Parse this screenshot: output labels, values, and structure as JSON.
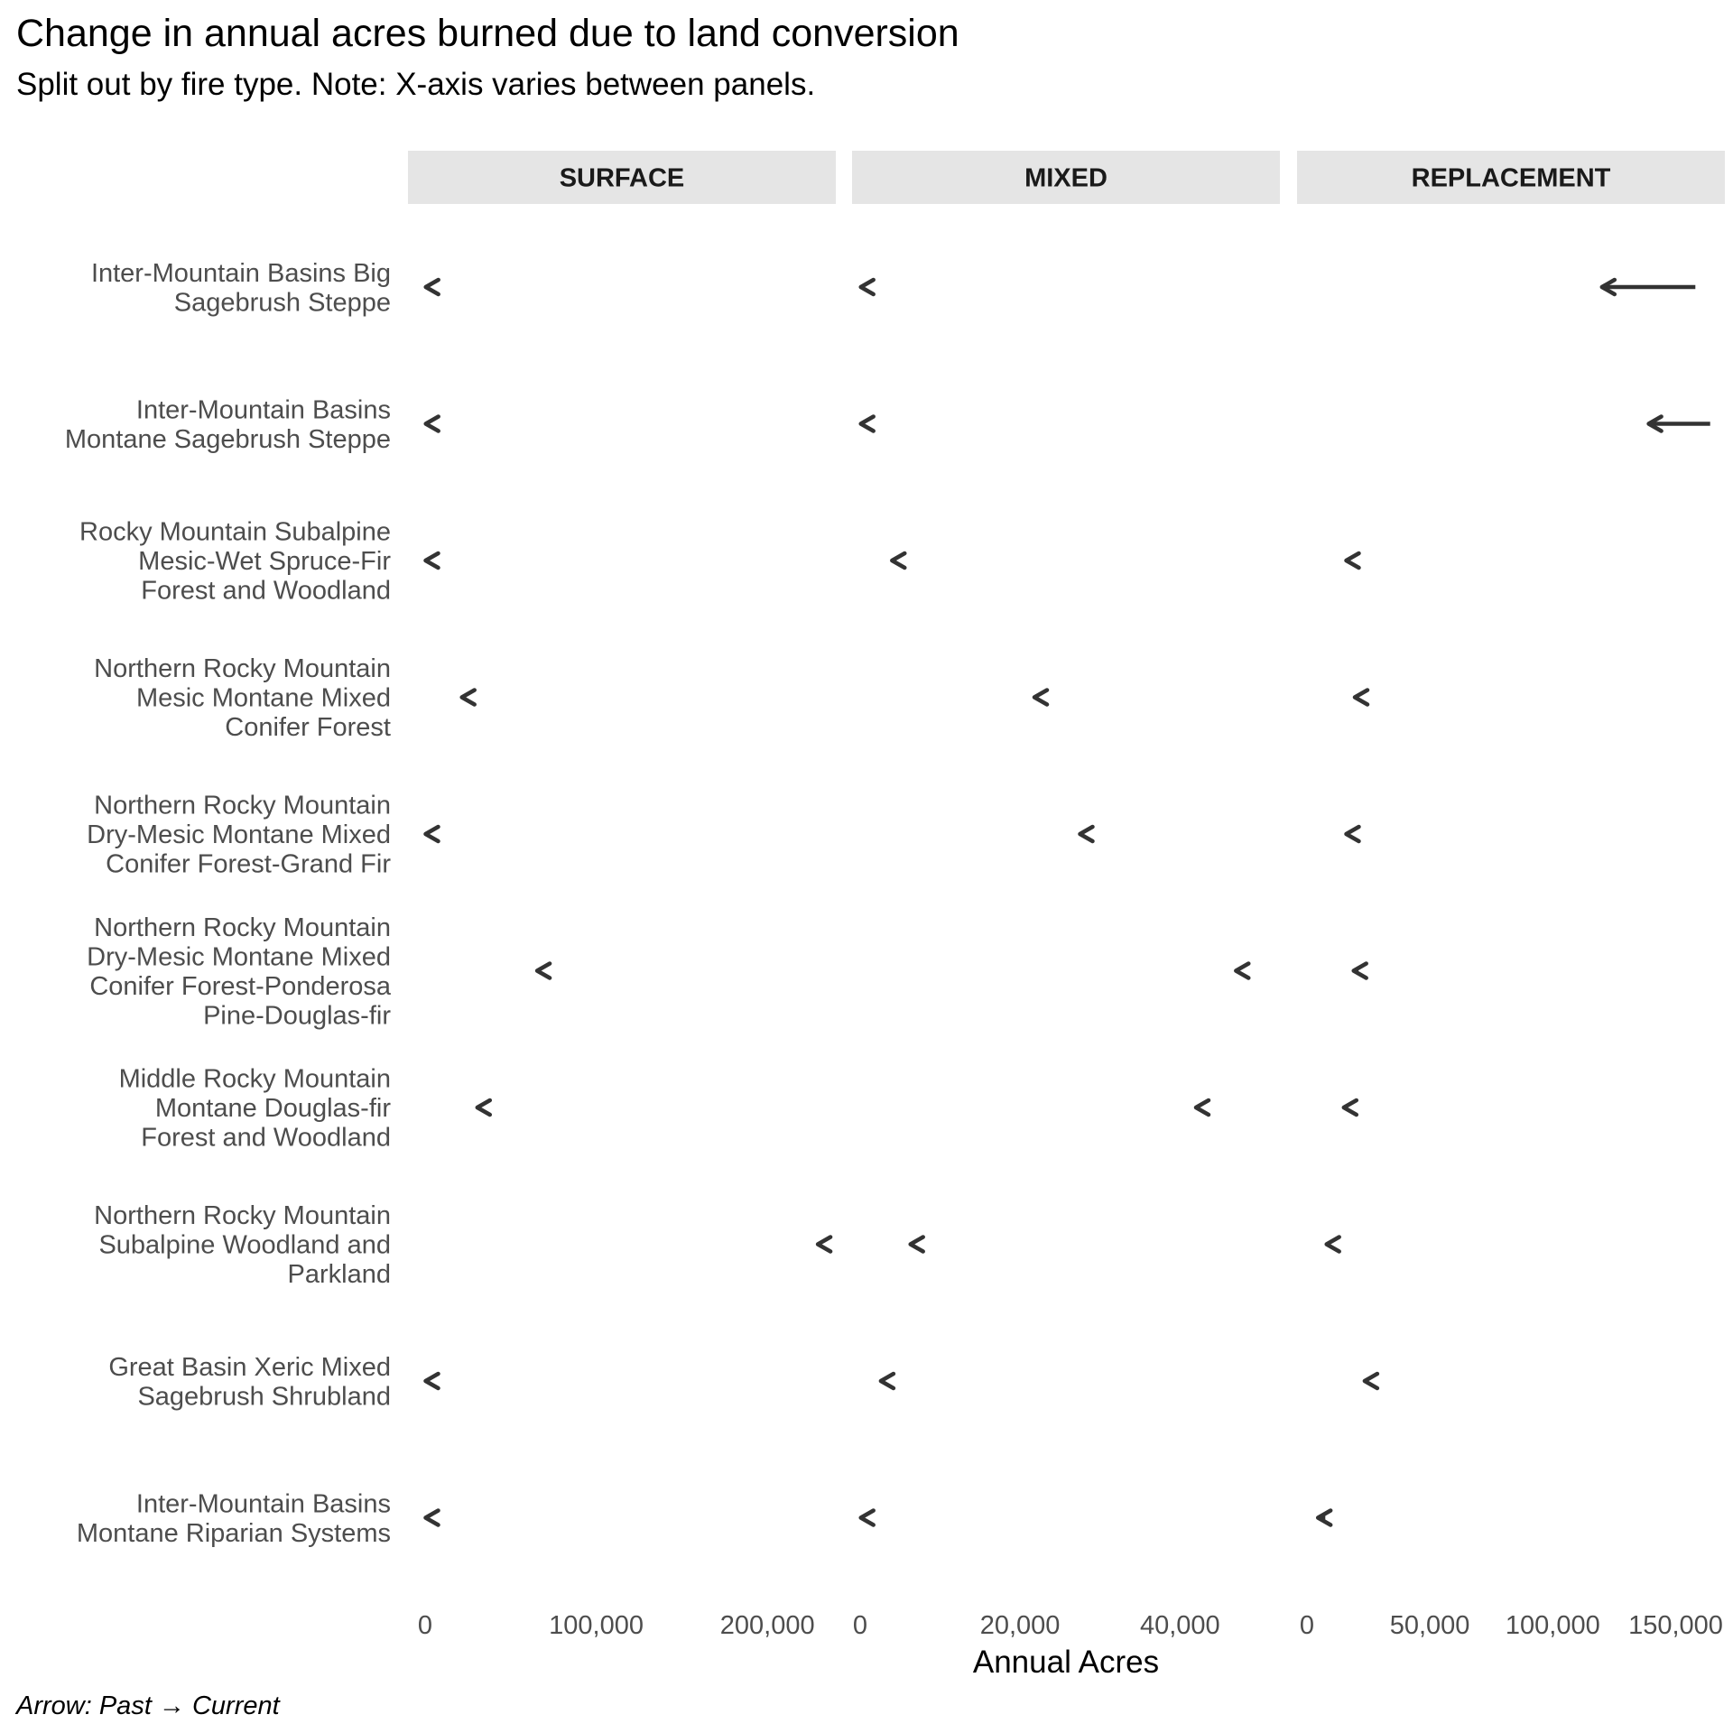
{
  "title": "Change in annual acres burned due to land conversion",
  "subtitle": "Split out by fire type.  Note: X-axis varies between panels.",
  "caption": "Arrow: Past → Current",
  "chart_data": {
    "type": "arrow-dot (faceted)",
    "xlabel": "Annual Acres",
    "arrow_color": "#333333",
    "strip_fill": "#e5e5e5",
    "categories": [
      "Inter-Mountain Basins Big Sagebrush Steppe",
      "Inter-Mountain Basins Montane Sagebrush Steppe",
      "Rocky Mountain Subalpine Mesic-Wet Spruce-Fir Forest and Woodland",
      "Northern Rocky Mountain Mesic Montane Mixed Conifer Forest",
      "Northern Rocky Mountain Dry-Mesic Montane Mixed Conifer Forest-Grand Fir",
      "Northern Rocky Mountain Dry-Mesic Montane Mixed Conifer Forest-Ponderosa Pine-Douglas-fir",
      "Middle Rocky Mountain Montane Douglas-fir Forest and Woodland",
      "Northern Rocky Mountain Subalpine Woodland and Parkland",
      "Great Basin Xeric Mixed Sagebrush Shrubland",
      "Inter-Mountain Basins Montane Riparian Systems"
    ],
    "category_label_lines": [
      [
        "Inter-Mountain Basins Big",
        "Sagebrush Steppe"
      ],
      [
        "Inter-Mountain Basins",
        "Montane Sagebrush Steppe"
      ],
      [
        "Rocky Mountain Subalpine",
        "Mesic-Wet Spruce-Fir",
        "Forest and Woodland"
      ],
      [
        "Northern Rocky Mountain",
        "Mesic Montane Mixed",
        "Conifer Forest"
      ],
      [
        "Northern Rocky Mountain",
        "Dry-Mesic Montane Mixed",
        "Conifer Forest-Grand Fir"
      ],
      [
        "Northern Rocky Mountain",
        "Dry-Mesic Montane Mixed",
        "Conifer Forest-Ponderosa",
        "Pine-Douglas-fir"
      ],
      [
        "Middle Rocky Mountain",
        "Montane Douglas-fir",
        "Forest and Woodland"
      ],
      [
        "Northern Rocky Mountain",
        "Subalpine Woodland and",
        "Parkland"
      ],
      [
        "Great Basin Xeric Mixed",
        "Sagebrush Shrubland"
      ],
      [
        "Inter-Mountain Basins",
        "Montane Riparian Systems"
      ]
    ],
    "panels": [
      {
        "name": "SURFACE",
        "xlim": [
          -10000,
          240000
        ],
        "ticks": [
          0,
          100000,
          200000
        ],
        "tick_labels": [
          "0",
          "100,000",
          "200,000"
        ],
        "past": [
          1500,
          1500,
          1200,
          23000,
          1200,
          67000,
          32000,
          231000,
          1200,
          1200
        ],
        "current": [
          400,
          400,
          300,
          21500,
          300,
          65500,
          30500,
          229500,
          300,
          300
        ]
      },
      {
        "name": "MIXED",
        "xlim": [
          -1000,
          52500
        ],
        "ticks": [
          0,
          20000,
          40000
        ],
        "tick_labels": [
          "0",
          "20,000",
          "40,000"
        ],
        "past": [
          500,
          500,
          4400,
          22200,
          27900,
          47500,
          42400,
          6700,
          3000,
          500
        ],
        "current": [
          100,
          100,
          4000,
          21800,
          27500,
          47000,
          42000,
          6300,
          2600,
          100
        ]
      },
      {
        "name": "REPLACEMENT",
        "xlim": [
          -4000,
          170000
        ],
        "ticks": [
          0,
          50000,
          100000,
          150000
        ],
        "tick_labels": [
          "0",
          "50,000",
          "100,000",
          "150,000"
        ],
        "past": [
          158000,
          164000,
          17500,
          21000,
          17500,
          21000,
          16500,
          9500,
          25000,
          7500
        ],
        "current": [
          120000,
          139000,
          16000,
          19500,
          16000,
          19000,
          15000,
          8000,
          23500,
          4500
        ]
      }
    ]
  }
}
